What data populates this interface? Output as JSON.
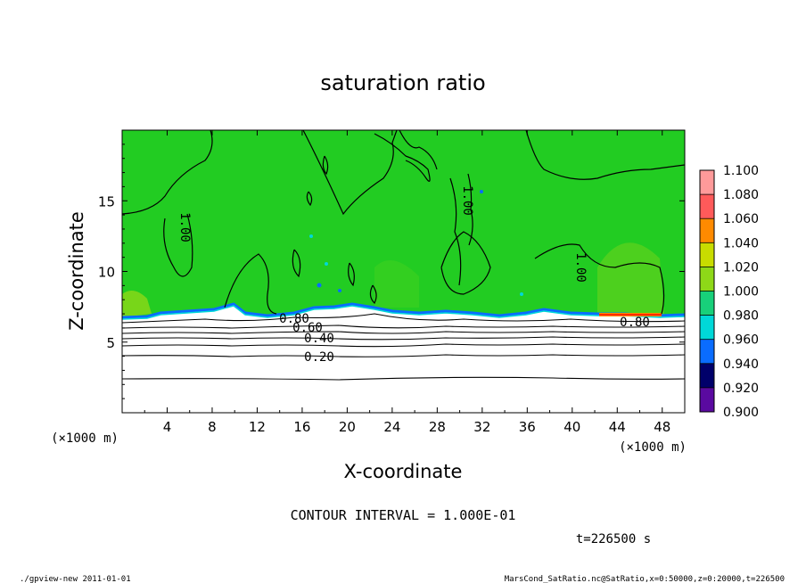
{
  "chart_data": {
    "type": "heatmap",
    "title": "saturation ratio",
    "xlabel": "X-coordinate",
    "ylabel": "Z-coordinate",
    "x_unit": "(×1000 m)",
    "y_unit": "(×1000 m)",
    "xlim": [
      0,
      50
    ],
    "ylim": [
      0,
      20
    ],
    "x_ticks": [
      "4",
      "8",
      "12",
      "16",
      "20",
      "24",
      "28",
      "32",
      "36",
      "40",
      "44",
      "48"
    ],
    "y_ticks": [
      "5",
      "10",
      "15"
    ],
    "colorbar": {
      "levels": [
        "1.100",
        "1.080",
        "1.060",
        "1.040",
        "1.020",
        "1.000",
        "0.980",
        "0.960",
        "0.940",
        "0.920",
        "0.900"
      ],
      "colors": [
        "#ff9a9a",
        "#ff5a5a",
        "#ff2a00",
        "#ff8a00",
        "#c8dc00",
        "#8ed818",
        "#2ecc2e",
        "#18d07a",
        "#00d8d8",
        "#0a6cff",
        "#0a18c8",
        "#00006a",
        "#5a0aa0"
      ]
    },
    "contour_labels": [
      "1.00",
      "1.00",
      "1.00",
      "0.80",
      "0.60",
      "0.40",
      "0.20",
      "0.80"
    ],
    "contour_interval": "CONTOUR INTERVAL = 1.000E-01",
    "time": "t=226500 s"
  },
  "footer": {
    "left": "./gpview-new   2011-01-01",
    "right": "MarsCond_SatRatio.nc@SatRatio,x=0:50000,z=0:20000,t=226500"
  }
}
